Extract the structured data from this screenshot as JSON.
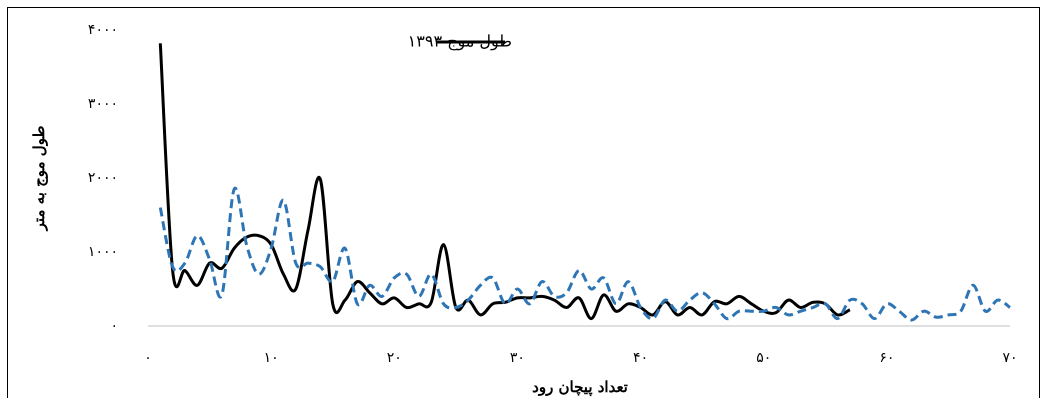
{
  "chart_data": {
    "type": "line",
    "xlabel": "تعداد پیچان رود",
    "ylabel": "طول موج به متر",
    "xlim": [
      0,
      70
    ],
    "xticks": [
      {
        "value": 0,
        "label": "۰"
      },
      {
        "value": 10,
        "label": "۱۰"
      },
      {
        "value": 20,
        "label": "۲۰"
      },
      {
        "value": 30,
        "label": "۳۰"
      },
      {
        "value": 40,
        "label": "۴۰"
      },
      {
        "value": 50,
        "label": "۵۰"
      },
      {
        "value": 60,
        "label": "۶۰"
      },
      {
        "value": 70,
        "label": "۷۰"
      }
    ],
    "ylim": [
      0,
      4000
    ],
    "yticks": [
      {
        "value": 0,
        "label": "۰"
      },
      {
        "value": 1000,
        "label": "۱۰۰۰"
      },
      {
        "value": 2000,
        "label": "۲۰۰۰"
      },
      {
        "value": 3000,
        "label": "۳۰۰۰"
      },
      {
        "value": 4000,
        "label": "۴۰۰۰"
      }
    ],
    "grid": false,
    "legend": "top",
    "series": [
      {
        "name": "طول موج ۱۳۹۳",
        "color": "#000000",
        "dash": false,
        "x": [
          1,
          2,
          3,
          4,
          5,
          6,
          7,
          8,
          9,
          10,
          11,
          12,
          13,
          14,
          15,
          16,
          17,
          18,
          19,
          20,
          21,
          22,
          23,
          24,
          25,
          26,
          27,
          28,
          29,
          30,
          31,
          32,
          33,
          34,
          35,
          36,
          37,
          38,
          39,
          40,
          41,
          42,
          43,
          44,
          45,
          46,
          47,
          48,
          49,
          50,
          51,
          52,
          53,
          54,
          55,
          56,
          57
        ],
        "values": [
          3820,
          750,
          750,
          550,
          850,
          780,
          1050,
          1200,
          1220,
          1100,
          700,
          500,
          1300,
          1980,
          300,
          350,
          600,
          450,
          300,
          380,
          250,
          300,
          320,
          1100,
          250,
          350,
          150,
          300,
          320,
          380,
          380,
          400,
          350,
          250,
          380,
          100,
          420,
          200,
          300,
          250,
          150,
          330,
          150,
          250,
          150,
          330,
          300,
          400,
          300,
          200,
          180,
          350,
          250,
          320,
          300,
          150,
          220
        ]
      },
      {
        "color": "#2e75b6",
        "dash": true,
        "x": [
          1,
          2,
          3,
          4,
          5,
          6,
          7,
          8,
          9,
          10,
          11,
          12,
          13,
          14,
          15,
          16,
          17,
          18,
          19,
          20,
          21,
          22,
          23,
          24,
          25,
          26,
          27,
          28,
          29,
          30,
          31,
          32,
          33,
          34,
          35,
          36,
          37,
          38,
          39,
          40,
          41,
          42,
          43,
          44,
          45,
          46,
          47,
          48,
          49,
          50,
          51,
          52,
          53,
          54,
          55,
          56,
          57,
          58,
          59,
          60,
          61,
          62,
          63,
          64,
          65,
          66,
          67,
          68,
          69,
          70
        ],
        "values": [
          1600,
          800,
          850,
          1220,
          900,
          420,
          1850,
          1100,
          700,
          1050,
          1700,
          850,
          850,
          800,
          600,
          1050,
          300,
          550,
          400,
          650,
          700,
          400,
          700,
          300,
          250,
          350,
          550,
          650,
          300,
          500,
          300,
          600,
          400,
          450,
          750,
          500,
          650,
          300,
          600,
          250,
          100,
          350,
          200,
          350,
          450,
          300,
          100,
          200,
          200,
          200,
          250,
          150,
          200,
          250,
          300,
          100,
          350,
          300,
          100,
          300,
          200,
          80,
          200,
          120,
          150,
          200,
          550,
          200,
          350,
          250
        ]
      }
    ]
  }
}
